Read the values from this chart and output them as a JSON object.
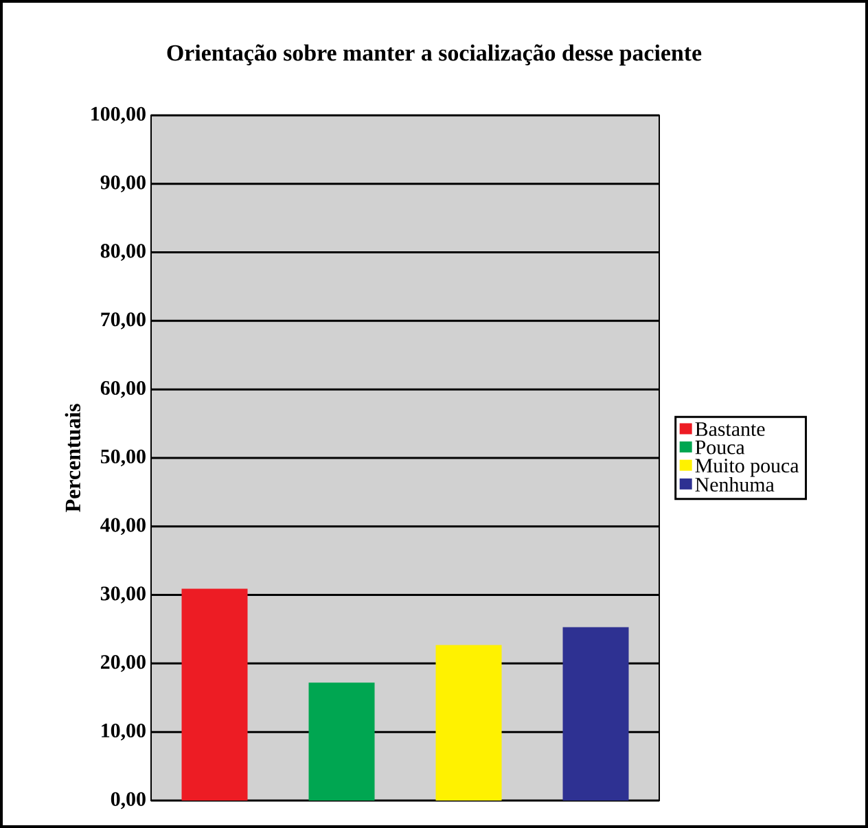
{
  "chart_data": {
    "type": "bar",
    "title": "Orientação sobre manter a socialização desse paciente",
    "ylabel": "Percentuais",
    "categories": [
      null,
      null,
      null,
      null
    ],
    "series": [
      {
        "name": "Bastante",
        "color": "#ed1c24",
        "values": [
          30.9,
          null,
          null,
          null
        ]
      },
      {
        "name": "Pouca",
        "color": "#00a651",
        "values": [
          null,
          17.2,
          null,
          null
        ]
      },
      {
        "name": "Muito pouca",
        "color": "#fff200",
        "values": [
          null,
          null,
          22.7,
          null
        ]
      },
      {
        "name": "Nenhuma",
        "color": "#2e3192",
        "values": [
          null,
          null,
          null,
          25.3
        ]
      }
    ],
    "ylim": [
      0,
      100
    ],
    "yticks": [
      {
        "value": 0,
        "label": "0,00"
      },
      {
        "value": 10,
        "label": "10,00"
      },
      {
        "value": 20,
        "label": "20,00"
      },
      {
        "value": 30,
        "label": "30,00"
      },
      {
        "value": 40,
        "label": "40,00"
      },
      {
        "value": 50,
        "label": "50,00"
      },
      {
        "value": 60,
        "label": "60,00"
      },
      {
        "value": 70,
        "label": "70,00"
      },
      {
        "value": 80,
        "label": "80,00"
      },
      {
        "value": 90,
        "label": "90,00"
      },
      {
        "value": 100,
        "label": "100,00"
      }
    ],
    "grid": "y",
    "legend": "right"
  }
}
